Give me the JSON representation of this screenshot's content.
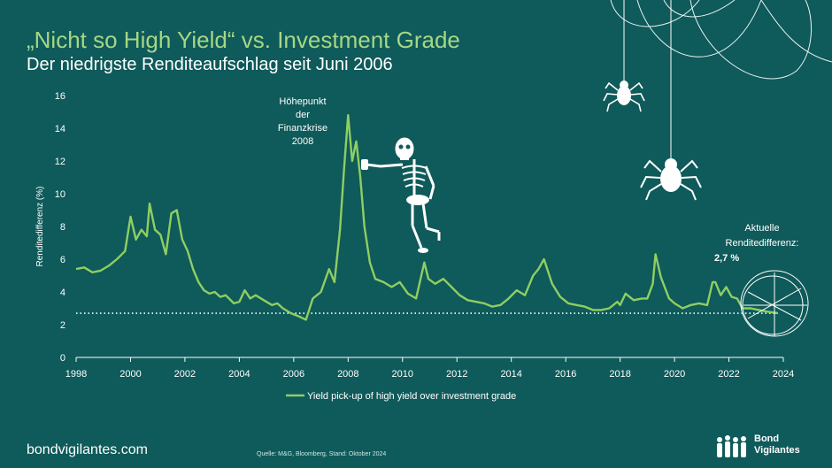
{
  "header": {
    "title": "„Nicht so High Yield“ vs. Investment Grade",
    "subtitle": "Der niedrigste Renditeaufschlag seit Juni 2006"
  },
  "annotations": {
    "crisis": [
      "Höhepunkt",
      "der",
      "Finanzkrise",
      "2008"
    ],
    "current_label": [
      "Aktuelle",
      "Renditedifferenz:"
    ],
    "current_value": "2,7 %"
  },
  "footer": {
    "site": "bondvigilantes.com",
    "source": "Quelle: M&G, Bloomberg, Stand: Oktober 2024",
    "brand_line1": "Bond",
    "brand_line2": "Vigilantes"
  },
  "icons": [
    "skeleton-icon",
    "spider-icon",
    "spider-web-icon",
    "brand-logo-icon"
  ],
  "colors": {
    "background": "#0f5a5a",
    "line": "#8fce62",
    "title": "#a6d785",
    "reference_line": "#ffffff"
  },
  "chart_data": {
    "type": "line",
    "title": "",
    "xlabel": "",
    "ylabel": "Renditedifferenz (%)",
    "xlim": [
      1998,
      2024
    ],
    "ylim": [
      0,
      16
    ],
    "x_ticks": [
      "1998",
      "2000",
      "2002",
      "2004",
      "2006",
      "2008",
      "2010",
      "2012",
      "2014",
      "2016",
      "2018",
      "2020",
      "2022",
      "2024"
    ],
    "y_ticks": [
      "0",
      "2",
      "4",
      "6",
      "8",
      "10",
      "12",
      "14",
      "16"
    ],
    "reference_value": 2.7,
    "legend": "bottom-center",
    "series": [
      {
        "name": "Yield pick-up of high yield over investment grade",
        "x": [
          1998.0,
          1998.3,
          1998.6,
          1998.9,
          1999.2,
          1999.5,
          1999.8,
          2000.0,
          2000.2,
          2000.4,
          2000.6,
          2000.7,
          2000.9,
          2001.1,
          2001.3,
          2001.5,
          2001.7,
          2001.9,
          2002.1,
          2002.3,
          2002.5,
          2002.7,
          2002.9,
          2003.1,
          2003.3,
          2003.5,
          2003.8,
          2004.0,
          2004.2,
          2004.4,
          2004.6,
          2004.9,
          2005.2,
          2005.4,
          2005.6,
          2005.9,
          2006.2,
          2006.45,
          2006.7,
          2007.0,
          2007.3,
          2007.5,
          2007.7,
          2007.85,
          2008.0,
          2008.15,
          2008.3,
          2008.45,
          2008.6,
          2008.8,
          2009.0,
          2009.3,
          2009.6,
          2009.9,
          2010.2,
          2010.5,
          2010.8,
          2010.95,
          2011.2,
          2011.5,
          2011.8,
          2012.1,
          2012.4,
          2012.7,
          2013.0,
          2013.3,
          2013.6,
          2013.9,
          2014.2,
          2014.5,
          2014.8,
          2015.0,
          2015.2,
          2015.5,
          2015.8,
          2016.1,
          2016.4,
          2016.7,
          2017.0,
          2017.3,
          2017.6,
          2017.9,
          2018.0,
          2018.2,
          2018.5,
          2018.8,
          2019.0,
          2019.2,
          2019.3,
          2019.5,
          2019.8,
          2020.0,
          2020.3,
          2020.6,
          2020.9,
          2021.2,
          2021.4,
          2021.5,
          2021.7,
          2021.9,
          2022.1,
          2022.3,
          2022.5,
          2022.8,
          2023.1,
          2023.4,
          2023.8
        ],
        "values": [
          5.4,
          5.5,
          5.2,
          5.3,
          5.6,
          6.0,
          6.5,
          8.6,
          7.2,
          7.8,
          7.4,
          9.4,
          7.8,
          7.5,
          6.3,
          8.8,
          9.0,
          7.2,
          6.5,
          5.4,
          4.6,
          4.1,
          3.9,
          4.0,
          3.7,
          3.8,
          3.3,
          3.4,
          4.1,
          3.6,
          3.8,
          3.5,
          3.2,
          3.3,
          3.0,
          2.7,
          2.5,
          2.3,
          3.6,
          4.0,
          5.4,
          4.6,
          7.8,
          11.5,
          14.8,
          12.0,
          13.2,
          11.0,
          8.0,
          5.8,
          4.8,
          4.6,
          4.3,
          4.6,
          3.9,
          3.6,
          5.8,
          4.8,
          4.5,
          4.8,
          4.3,
          3.8,
          3.5,
          3.4,
          3.3,
          3.1,
          3.2,
          3.6,
          4.1,
          3.8,
          5.0,
          5.4,
          6.0,
          4.5,
          3.7,
          3.3,
          3.2,
          3.1,
          2.9,
          2.9,
          3.0,
          3.4,
          3.2,
          3.9,
          3.5,
          3.6,
          3.6,
          4.5,
          6.3,
          4.9,
          3.6,
          3.3,
          3.0,
          3.2,
          3.3,
          3.2,
          4.6,
          4.6,
          3.8,
          4.3,
          3.7,
          3.6,
          3.0,
          3.0,
          2.9,
          2.8,
          2.7
        ]
      }
    ]
  }
}
